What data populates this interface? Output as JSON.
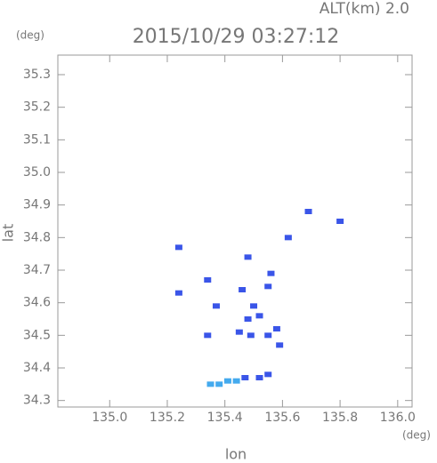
{
  "chart_data": {
    "type": "scatter",
    "title": "2015/10/29 03:27:12",
    "annotation": "ALT(km) 2.0",
    "x_unit": "(deg)",
    "y_unit": "(deg)",
    "x_label": "lon",
    "y_label": "lat",
    "xlim": [
      134.82,
      136.05
    ],
    "ylim": [
      34.28,
      35.36
    ],
    "xticks": [
      {
        "value": 135,
        "label": "135.0"
      },
      135.2,
      135.4,
      135.6,
      135.8,
      {
        "value": 136,
        "label": "136.0"
      }
    ],
    "yticks": [
      34.3,
      34.4,
      34.5,
      34.6,
      34.7,
      34.8,
      34.9,
      {
        "value": 35,
        "label": "35.0"
      },
      35.1,
      35.2,
      35.3
    ],
    "series": [
      {
        "color": "#3a55e8",
        "x": [
          135.69,
          135.8,
          135.62,
          135.24,
          135.48,
          135.56,
          135.34,
          135.24,
          135.46,
          135.55,
          135.37,
          135.5,
          135.52,
          135.48,
          135.45,
          135.49,
          135.55,
          135.34,
          135.59,
          135.58,
          135.52,
          135.55,
          135.47
        ],
        "values": [
          34.88,
          34.85,
          34.8,
          34.77,
          34.74,
          34.69,
          34.67,
          34.63,
          34.64,
          34.65,
          34.59,
          34.59,
          34.56,
          34.55,
          34.51,
          34.5,
          34.5,
          34.5,
          34.47,
          34.52,
          34.37,
          34.38,
          34.37
        ]
      },
      {
        "color": "#44aaee",
        "x": [
          135.35,
          135.38,
          135.41,
          135.44
        ],
        "values": [
          34.35,
          34.35,
          34.36,
          34.36
        ]
      }
    ]
  }
}
